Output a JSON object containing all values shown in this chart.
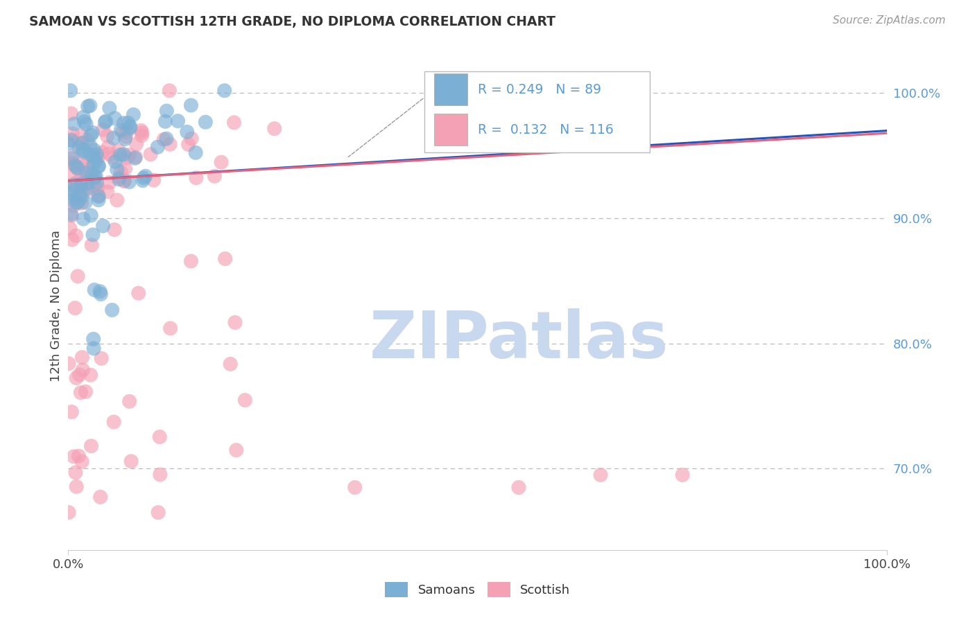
{
  "title": "SAMOAN VS SCOTTISH 12TH GRADE, NO DIPLOMA CORRELATION CHART",
  "source": "Source: ZipAtlas.com",
  "ylabel": "12th Grade, No Diploma",
  "legend_samoans": "Samoans",
  "legend_scottish": "Scottish",
  "R_samoan": 0.249,
  "N_samoan": 89,
  "R_scottish": 0.132,
  "N_scottish": 116,
  "samoan_color": "#7bafd4",
  "scottish_color": "#f4a0b5",
  "samoan_line_color": "#2255bb",
  "scottish_line_color": "#e8607a",
  "xmin": 0.0,
  "xmax": 1.0,
  "ymin": 0.635,
  "ymax": 1.025,
  "ytick_vals": [
    0.7,
    0.8,
    0.9,
    1.0
  ],
  "ytick_labels": [
    "70.0%",
    "80.0%",
    "90.0%",
    "100.0%"
  ],
  "background_color": "#ffffff",
  "grid_color": "#bbbbbb",
  "title_color": "#333333",
  "axis_label_color": "#5b9bd5",
  "watermark_color": "#c8d8ee",
  "samoan_line_x0": 0.0,
  "samoan_line_y0": 0.93,
  "samoan_line_x1": 1.0,
  "samoan_line_y1": 0.97,
  "scottish_line_x0": 0.0,
  "scottish_line_y0": 0.93,
  "scottish_line_x1": 1.0,
  "scottish_line_y1": 0.968
}
